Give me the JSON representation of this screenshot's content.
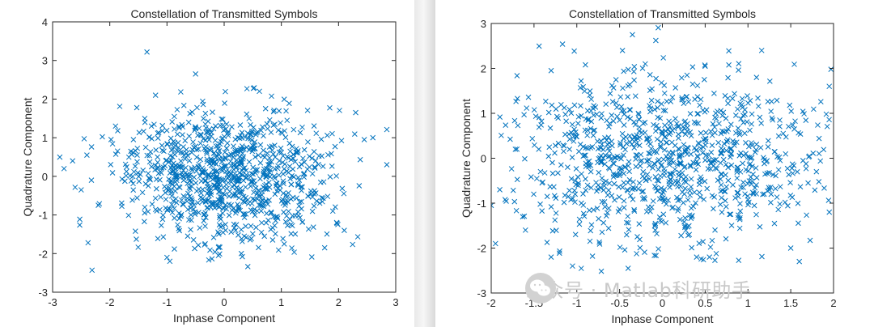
{
  "chart_data": [
    {
      "type": "scatter",
      "title": "Constellation of Transmitted Symbols",
      "xlabel": "Inphase Component",
      "ylabel": "Quadrature Component",
      "xlim": [
        -3,
        3
      ],
      "ylim": [
        -3,
        4
      ],
      "xticks": [
        "-3",
        "-2",
        "-1",
        "0",
        "1",
        "2",
        "3"
      ],
      "yticks": [
        "-3",
        "-2",
        "-1",
        "0",
        "1",
        "2",
        "3",
        "4"
      ],
      "marker": "x",
      "color": "#0072bd",
      "n_points": 1000,
      "distribution": "approximately circular complex Gaussian cloud centered at (0, 0), spread about ±2.5 in x and ±2 in y",
      "points": [
        [
          -1.35,
          3.22
        ],
        [
          -0.5,
          2.65
        ],
        [
          2.3,
          1.65
        ],
        [
          2.6,
          1.0
        ],
        [
          2.45,
          0.95
        ],
        [
          -2.8,
          0.2
        ],
        [
          -2.65,
          0.4
        ],
        [
          -2.4,
          0.55
        ],
        [
          -2.5,
          -0.35
        ],
        [
          -2.38,
          -1.72
        ],
        [
          -1.9,
          1.3
        ],
        [
          -1.0,
          -2.1
        ],
        [
          -0.95,
          -2.2
        ],
        [
          -0.1,
          -2.05
        ],
        [
          0.3,
          -2.0
        ],
        [
          1.05,
          -1.75
        ],
        [
          2.1,
          -1.4
        ],
        [
          -2.2,
          -0.75
        ],
        [
          1.9,
          -0.9
        ],
        [
          -1.2,
          2.1
        ]
      ]
    },
    {
      "type": "scatter",
      "title": "Constellation of Transmitted Symbols",
      "xlabel": "Inphase Component",
      "ylabel": "Quadrature Component",
      "xlim": [
        -2,
        2
      ],
      "ylim": [
        -3,
        3
      ],
      "xticks": [
        "-2",
        "-1.5",
        "-1",
        "-0.5",
        "0",
        "0.5",
        "1",
        "1.5",
        "2"
      ],
      "yticks": [
        "-3",
        "-2",
        "-1",
        "0",
        "1",
        "2",
        "3"
      ],
      "marker": "x",
      "color": "#0072bd",
      "n_points": 1000,
      "distribution": "broad cloud covering roughly -2 to 2 in x and -2.5 to 2.2 in y, denser near the center",
      "points": [
        [
          -0.35,
          2.75
        ],
        [
          -0.2,
          2.1
        ],
        [
          0.5,
          2.05
        ],
        [
          1.97,
          1.98
        ],
        [
          1.95,
          1.6
        ],
        [
          -2.0,
          -1.05
        ],
        [
          -1.95,
          -1.9
        ],
        [
          -1.9,
          -0.7
        ],
        [
          -1.6,
          -1.6
        ],
        [
          -1.3,
          -2.2
        ],
        [
          -1.05,
          -2.4
        ],
        [
          -0.4,
          -2.45
        ],
        [
          0.4,
          -2.2
        ],
        [
          0.55,
          -2.2
        ],
        [
          1.6,
          -2.3
        ],
        [
          1.5,
          -2.0
        ],
        [
          1.95,
          -1.2
        ],
        [
          1.8,
          -0.3
        ],
        [
          -1.3,
          1.95
        ],
        [
          1.1,
          1.8
        ],
        [
          -0.95,
          1.72
        ]
      ]
    }
  ],
  "watermark": {
    "text": "公众号 · Matlab科研助手",
    "logo_icon": "wechat-icon"
  }
}
